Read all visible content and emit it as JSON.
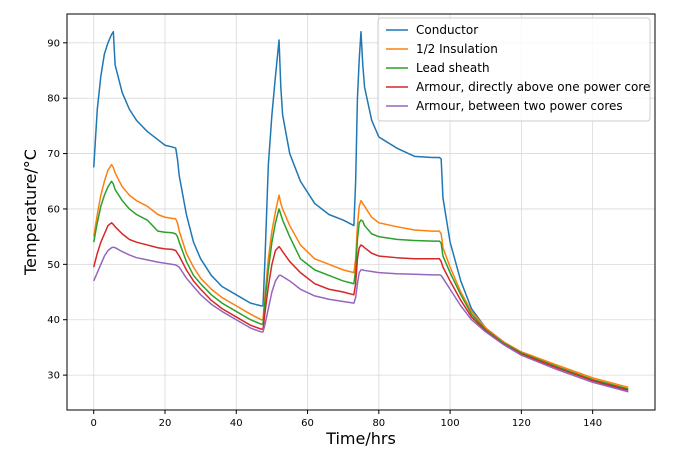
{
  "chart_data": {
    "type": "line",
    "xlabel": "Time/hrs",
    "ylabel": "Temperature/°C",
    "x": [
      0,
      1,
      2,
      3,
      4,
      5,
      5.5,
      6,
      8,
      10,
      12,
      15,
      18,
      20,
      22,
      23,
      23.5,
      24,
      26,
      28,
      30,
      33,
      36,
      40,
      44,
      47,
      47.5,
      48,
      49,
      50,
      51,
      52,
      52.5,
      53,
      55,
      58,
      62,
      66,
      70,
      73,
      73.5,
      74,
      74.5,
      75,
      75.5,
      76,
      78,
      80,
      85,
      90,
      95,
      97,
      97.5,
      98,
      100,
      103,
      106,
      110,
      115,
      120,
      130,
      140,
      150
    ],
    "series": [
      {
        "name": "Conductor",
        "color": "#1f77b4",
        "values": [
          67.5,
          78,
          84,
          88,
          90,
          91.5,
          92,
          86,
          81,
          78,
          76,
          74,
          72.5,
          71.5,
          71.2,
          71,
          69,
          66,
          59,
          54,
          51,
          48,
          46,
          44.5,
          43,
          42.5,
          42.5,
          50,
          68,
          77,
          84,
          90.5,
          82,
          77,
          70,
          65,
          61,
          59,
          58,
          57,
          65,
          80,
          87,
          92,
          86,
          82,
          76,
          73,
          71,
          69.5,
          69.3,
          69.3,
          69,
          62,
          54,
          47,
          42,
          38.5,
          36,
          34,
          31.5,
          29,
          27
        ]
      },
      {
        "name": "1/2 Insulation",
        "color": "#ff7f0e",
        "values": [
          55,
          59,
          62.5,
          65,
          67,
          68,
          67.5,
          66.5,
          64,
          62.5,
          61.5,
          60.5,
          59,
          58.5,
          58.3,
          58.2,
          57.5,
          56,
          52,
          49.5,
          47.5,
          45.5,
          44,
          42.5,
          41,
          40,
          40,
          44,
          51,
          56,
          59.5,
          62.5,
          61,
          60,
          57,
          53.5,
          51,
          50,
          49,
          48.5,
          51,
          57,
          60.5,
          61.5,
          61,
          60.5,
          58.5,
          57.5,
          56.8,
          56.2,
          56,
          56,
          55.5,
          53,
          49.5,
          45,
          41.5,
          38.5,
          36,
          34.2,
          31.8,
          29.5,
          27.8
        ]
      },
      {
        "name": "Lead sheath",
        "color": "#2ca02c",
        "values": [
          54,
          57.5,
          60.5,
          62.5,
          64,
          65,
          64.5,
          63.5,
          61.5,
          60,
          59,
          58,
          56,
          55.8,
          55.7,
          55.5,
          55,
          54,
          50.5,
          48,
          46.5,
          44.5,
          43,
          41.5,
          40,
          39.2,
          39.2,
          43,
          49,
          54,
          57.5,
          60,
          59,
          58,
          55,
          51,
          49,
          48,
          47,
          46.5,
          49,
          54.5,
          57.5,
          58,
          57.8,
          57,
          55.5,
          55,
          54.5,
          54.3,
          54.2,
          54.2,
          53.8,
          51.5,
          48.5,
          44.5,
          41,
          38.2,
          35.8,
          34,
          31.5,
          29.2,
          27.5
        ]
      },
      {
        "name": "Armour, directly above one power core",
        "color": "#d62728",
        "values": [
          49.5,
          52,
          54,
          55.5,
          57,
          57.5,
          57.2,
          56.8,
          55.5,
          54.5,
          54,
          53.5,
          53,
          52.8,
          52.7,
          52.5,
          52,
          51.5,
          49,
          47,
          45.5,
          43.5,
          42,
          40.5,
          39,
          38.3,
          38.3,
          41,
          46,
          50,
          52.5,
          53.2,
          52.8,
          52.3,
          50.5,
          48.5,
          46.5,
          45.5,
          45,
          44.5,
          46.5,
          51,
          53,
          53.5,
          53.3,
          53,
          52,
          51.5,
          51.2,
          51,
          51,
          51,
          50.5,
          49.5,
          47,
          43.5,
          40.5,
          38,
          35.6,
          33.8,
          31.3,
          29,
          27.3
        ]
      },
      {
        "name": "Armour, between two power cores",
        "color": "#9467bd",
        "values": [
          47,
          48.5,
          50,
          51.5,
          52.5,
          53,
          53.1,
          53,
          52.3,
          51.7,
          51.2,
          50.8,
          50.4,
          50.2,
          50,
          49.9,
          49.7,
          49.5,
          47.5,
          46,
          44.5,
          42.8,
          41.5,
          40,
          38.5,
          37.8,
          37.8,
          39,
          42,
          45,
          47,
          48,
          48,
          47.8,
          47,
          45.5,
          44.3,
          43.7,
          43.3,
          43,
          44,
          46.5,
          48.5,
          49,
          49,
          48.9,
          48.7,
          48.5,
          48.3,
          48.2,
          48.1,
          48.1,
          48,
          47.5,
          45.5,
          42.5,
          40,
          37.8,
          35.5,
          33.6,
          31,
          28.7,
          27
        ]
      }
    ],
    "xlim": [
      -7.5,
      157.5
    ],
    "xticks": [
      0,
      20,
      40,
      60,
      80,
      100,
      120,
      140
    ],
    "ylim": [
      23.7,
      95.2
    ],
    "yticks": [
      30,
      40,
      50,
      60,
      70,
      80,
      90
    ],
    "grid": true,
    "legend": "upper right"
  }
}
